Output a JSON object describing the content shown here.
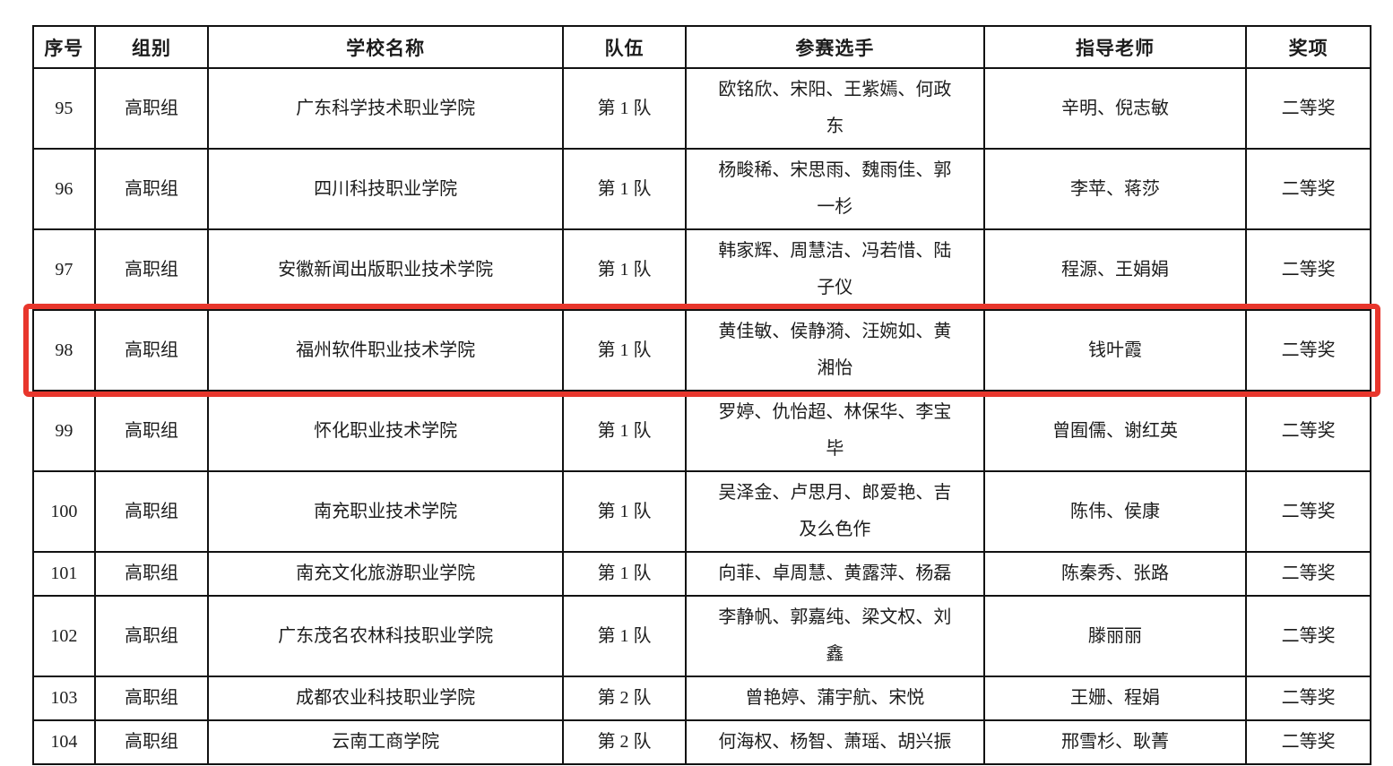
{
  "highlight": {
    "color": "#e8362c",
    "highlighted_row_no": "98"
  },
  "table": {
    "headers": [
      "序号",
      "组别",
      "学校名称",
      "队伍",
      "参赛选手",
      "指导老师",
      "奖项"
    ],
    "rows": [
      {
        "no": "95",
        "group": "高职组",
        "school": "广东科学技术职业学院",
        "team": "第 1 队",
        "players": "欧铭欣、宋阳、王紫嫣、何政\n东",
        "teachers": "辛明、倪志敏",
        "award": "二等奖",
        "highlighted": false
      },
      {
        "no": "96",
        "group": "高职组",
        "school": "四川科技职业学院",
        "team": "第 1 队",
        "players": "杨畯稀、宋思雨、魏雨佳、郭\n一杉",
        "teachers": "李苹、蒋莎",
        "award": "二等奖",
        "highlighted": false
      },
      {
        "no": "97",
        "group": "高职组",
        "school": "安徽新闻出版职业技术学院",
        "team": "第 1 队",
        "players": "韩家辉、周慧洁、冯若惜、陆\n子仪",
        "teachers": "程源、王娟娟",
        "award": "二等奖",
        "highlighted": false
      },
      {
        "no": "98",
        "group": "高职组",
        "school": "福州软件职业技术学院",
        "team": "第 1 队",
        "players": "黄佳敏、侯静漪、汪婉如、黄\n湘怡",
        "teachers": "钱叶霞",
        "award": "二等奖",
        "highlighted": true
      },
      {
        "no": "99",
        "group": "高职组",
        "school": "怀化职业技术学院",
        "team": "第 1 队",
        "players": "罗婷、仇怡超、林保华、李宝\n毕",
        "teachers": "曾囿儒、谢红英",
        "award": "二等奖",
        "highlighted": false
      },
      {
        "no": "100",
        "group": "高职组",
        "school": "南充职业技术学院",
        "team": "第 1 队",
        "players": "吴泽金、卢思月、郎爱艳、吉\n及么色作",
        "teachers": "陈伟、侯康",
        "award": "二等奖",
        "highlighted": false
      },
      {
        "no": "101",
        "group": "高职组",
        "school": "南充文化旅游职业学院",
        "team": "第 1 队",
        "players": "向菲、卓周慧、黄露萍、杨磊",
        "teachers": "陈秦秀、张路",
        "award": "二等奖",
        "highlighted": false
      },
      {
        "no": "102",
        "group": "高职组",
        "school": "广东茂名农林科技职业学院",
        "team": "第 1 队",
        "players": "李静帆、郭嘉纯、梁文权、刘\n鑫",
        "teachers": "滕丽丽",
        "award": "二等奖",
        "highlighted": false
      },
      {
        "no": "103",
        "group": "高职组",
        "school": "成都农业科技职业学院",
        "team": "第 2 队",
        "players": "曾艳婷、蒲宇航、宋悦",
        "teachers": "王姗、程娟",
        "award": "二等奖",
        "highlighted": false
      },
      {
        "no": "104",
        "group": "高职组",
        "school": "云南工商学院",
        "team": "第 2 队",
        "players": "何海权、杨智、萧瑶、胡兴振",
        "teachers": "邢雪杉、耿菁",
        "award": "二等奖",
        "highlighted": false
      }
    ]
  }
}
